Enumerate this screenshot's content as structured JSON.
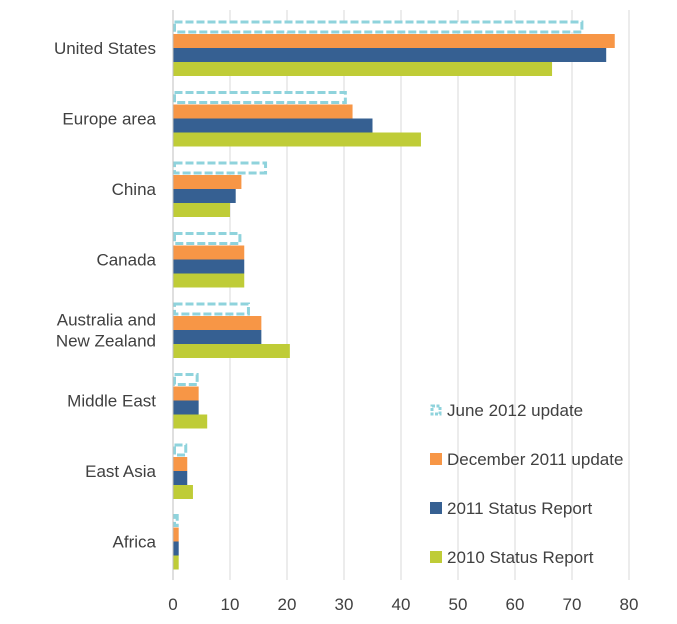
{
  "chart_data": {
    "type": "bar",
    "orientation": "horizontal",
    "title": "",
    "xlabel": "",
    "ylabel": "",
    "xlim": [
      0,
      80
    ],
    "xticks": [
      0,
      10,
      20,
      30,
      40,
      50,
      60,
      70,
      80
    ],
    "grid": "vertical",
    "legend_position": "bottom-right",
    "categories": [
      "United States",
      "Europe area",
      "China",
      "Canada",
      "Australia and New Zealand",
      "Middle East",
      "East Asia",
      "Africa"
    ],
    "category_lines": [
      [
        "United States"
      ],
      [
        "Europe area"
      ],
      [
        "China"
      ],
      [
        "Canada"
      ],
      [
        "Australia and",
        "New Zealand"
      ],
      [
        "Middle East"
      ],
      [
        "East Asia"
      ],
      [
        "Africa"
      ]
    ],
    "series": [
      {
        "name": "June 2012 update",
        "style": "dashed-outline",
        "color": "#8fd3dc",
        "values": [
          72,
          30.5,
          16.5,
          12,
          13.5,
          4.5,
          2.5,
          1
        ]
      },
      {
        "name": "December 2011 update",
        "style": "solid",
        "color": "#f79646",
        "values": [
          77.5,
          31.5,
          12,
          12.5,
          15.5,
          4.5,
          2.5,
          1
        ]
      },
      {
        "name": "2011 Status Report",
        "style": "solid",
        "color": "#366092",
        "values": [
          76,
          35,
          11,
          12.5,
          15.5,
          4.5,
          2.5,
          1
        ]
      },
      {
        "name": "2010 Status Report",
        "style": "solid",
        "color": "#bfcc37",
        "values": [
          66.5,
          43.5,
          10,
          12.5,
          20.5,
          6,
          3.5,
          1
        ]
      }
    ]
  }
}
